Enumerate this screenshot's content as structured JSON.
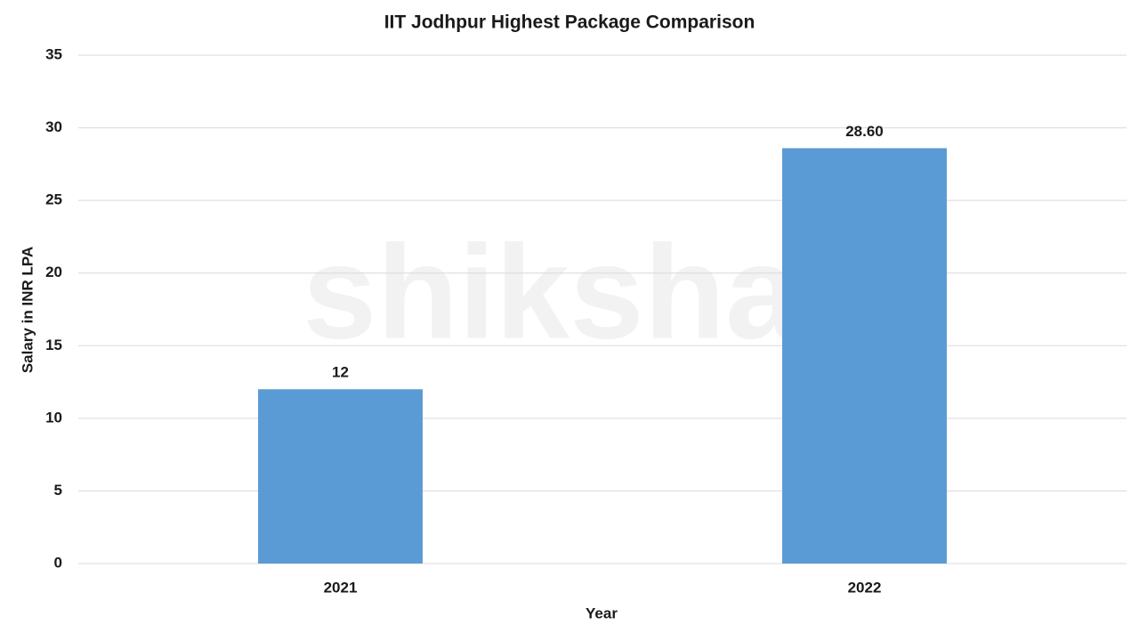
{
  "chart_data": {
    "type": "bar",
    "title": "IIT Jodhpur Highest Package Comparison",
    "watermark": "shiksha",
    "x_label": "Year",
    "y_label": "Salary in INR LPA",
    "categories": [
      "2021",
      "2022"
    ],
    "values": [
      12,
      28.6
    ],
    "value_labels": [
      "12",
      "28.60"
    ],
    "color": "#5b9bd5",
    "ylim": [
      0,
      35
    ],
    "yticks": [
      0,
      5,
      10,
      15,
      20,
      25,
      30,
      35
    ],
    "grid": true
  }
}
